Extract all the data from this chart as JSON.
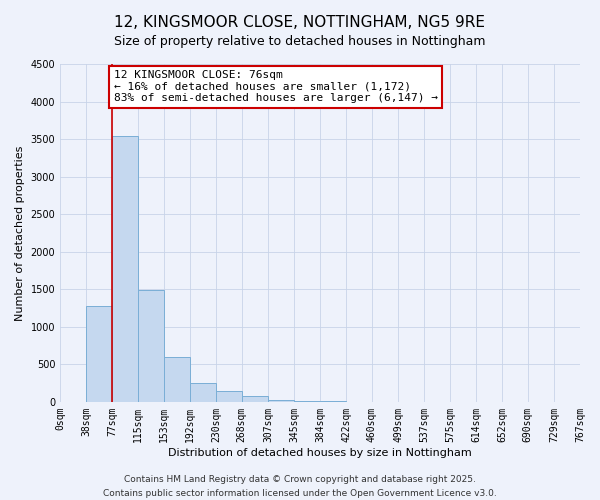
{
  "title": "12, KINGSMOOR CLOSE, NOTTINGHAM, NG5 9RE",
  "subtitle": "Size of property relative to detached houses in Nottingham",
  "xlabel": "Distribution of detached houses by size in Nottingham",
  "ylabel": "Number of detached properties",
  "bar_values": [
    0,
    1280,
    3540,
    1490,
    600,
    250,
    140,
    75,
    30,
    10,
    5,
    3,
    2,
    1,
    1,
    1,
    0,
    0,
    0,
    0
  ],
  "bin_edges": [
    0,
    38,
    77,
    115,
    153,
    192,
    230,
    268,
    307,
    345,
    384,
    422,
    460,
    499,
    537,
    575,
    614,
    652,
    690,
    729,
    767
  ],
  "tick_labels": [
    "0sqm",
    "38sqm",
    "77sqm",
    "115sqm",
    "153sqm",
    "192sqm",
    "230sqm",
    "268sqm",
    "307sqm",
    "345sqm",
    "384sqm",
    "422sqm",
    "460sqm",
    "499sqm",
    "537sqm",
    "575sqm",
    "614sqm",
    "652sqm",
    "690sqm",
    "729sqm",
    "767sqm"
  ],
  "bar_color": "#c5d8ef",
  "bar_edge_color": "#7aaed6",
  "property_line_x": 77,
  "red_line_color": "#cc0000",
  "annotation_text": "12 KINGSMOOR CLOSE: 76sqm\n← 16% of detached houses are smaller (1,172)\n83% of semi-detached houses are larger (6,147) →",
  "annotation_box_color": "white",
  "annotation_box_edge_color": "#cc0000",
  "ylim": [
    0,
    4500
  ],
  "yticks": [
    0,
    500,
    1000,
    1500,
    2000,
    2500,
    3000,
    3500,
    4000,
    4500
  ],
  "footer_line1": "Contains HM Land Registry data © Crown copyright and database right 2025.",
  "footer_line2": "Contains public sector information licensed under the Open Government Licence v3.0.",
  "background_color": "#eef2fb",
  "grid_color": "#c8d4e8",
  "title_fontsize": 11,
  "subtitle_fontsize": 9,
  "axis_label_fontsize": 8,
  "tick_fontsize": 7,
  "annotation_fontsize": 8,
  "footer_fontsize": 6.5
}
